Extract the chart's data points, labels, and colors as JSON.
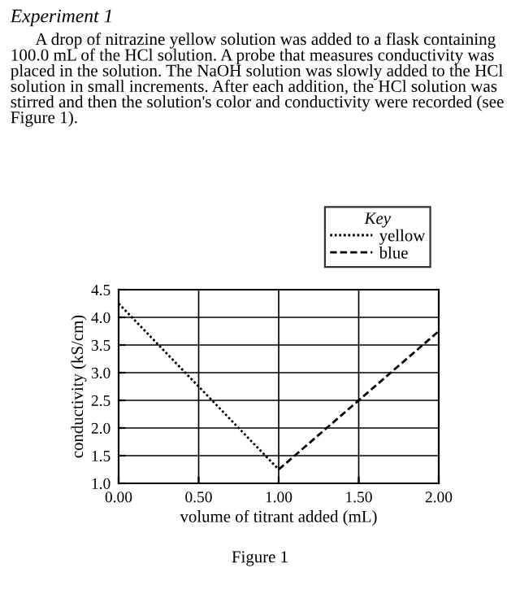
{
  "chart_data": {
    "type": "line",
    "title": "Experiment 1",
    "subtitle": "A drop of nitrazine yellow solution was added to a flask containing 100.0 mL of the HCl solution. A probe that measures conductivity was placed in the solution. The NaOH solution was slowly added to the HCl solution in small increments. After each addition, the HCl solution was stirred and then the solution's color and conductivity were recorded (see Figure 1).",
    "xlabel": "volume of titrant added (mL)",
    "ylabel": "conductivity (kS/cm)",
    "legend_title": "Key",
    "series": [
      {
        "name": "yellow",
        "color": "#000000",
        "line_style": "dotted",
        "x": [
          0.0,
          1.0
        ],
        "values": [
          4.25,
          1.25
        ]
      },
      {
        "name": "blue",
        "color": "#000000",
        "line_style": "dashed",
        "x": [
          1.0,
          2.0
        ],
        "values": [
          1.25,
          3.75
        ]
      }
    ],
    "xlim": [
      0,
      2
    ],
    "ylim": [
      1.0,
      4.5
    ],
    "xticks": [
      {
        "value": 0,
        "label": "0.00"
      },
      {
        "value": 0.5,
        "label": "0.50"
      },
      {
        "value": 1,
        "label": "1.00"
      },
      {
        "value": 1.5,
        "label": "1.50"
      },
      {
        "value": 2,
        "label": "2.00"
      }
    ],
    "yticks": [
      {
        "value": 1,
        "label": "1.0"
      },
      {
        "value": 1.5,
        "label": "1.5"
      },
      {
        "value": 2,
        "label": "2.0"
      },
      {
        "value": 2.5,
        "label": "2.5"
      },
      {
        "value": 3,
        "label": "3.0"
      },
      {
        "value": 3.5,
        "label": "3.5"
      },
      {
        "value": 4,
        "label": "4.0"
      },
      {
        "value": 4.5,
        "label": "4.5"
      }
    ],
    "grid": true,
    "legend": "top right",
    "marker": "none",
    "annotations": [
      "Figure 1"
    ]
  }
}
